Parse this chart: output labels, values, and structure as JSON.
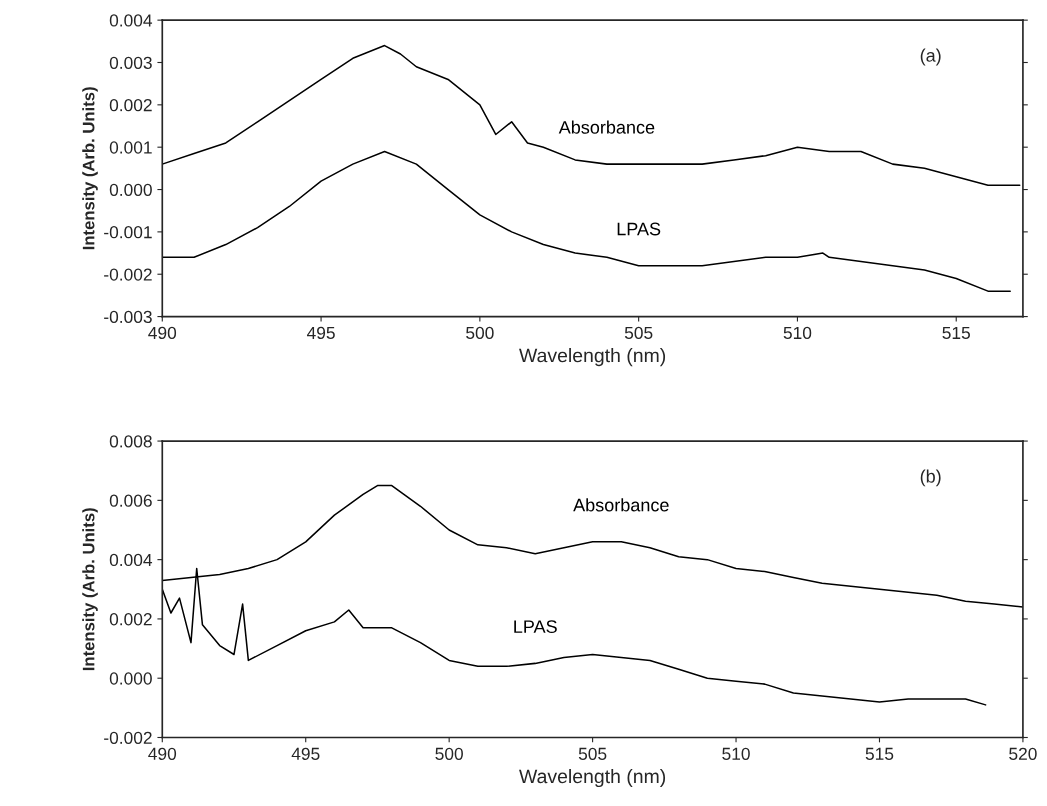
{
  "chart_data": [
    {
      "type": "line",
      "xlabel": "Wavelength (nm)",
      "ylabel": "Intensity (Arb. Units)",
      "annotations": [
        "(a)"
      ],
      "xlim": [
        490,
        517.1
      ],
      "xticks": [
        490,
        495,
        500,
        505,
        510,
        515
      ],
      "ylim": [
        -0.003,
        0.004
      ],
      "yticks": [
        {
          "value": -0.003,
          "label": "-0.003"
        },
        {
          "value": -0.002,
          "label": "-0.002"
        },
        {
          "value": -0.001,
          "label": "-0.001"
        },
        {
          "value": 0,
          "label": "0.000"
        },
        {
          "value": 0.001,
          "label": "0.001"
        },
        {
          "value": 0.002,
          "label": "0.002"
        },
        {
          "value": 0.003,
          "label": "0.003"
        },
        {
          "value": 0.004,
          "label": "0.004"
        }
      ],
      "grid": false,
      "legend": false,
      "series": [
        {
          "name": "Absorbance",
          "color": "#000000",
          "x": [
            490,
            491,
            492,
            493,
            494,
            495,
            496,
            497,
            497.5,
            498,
            499,
            500,
            500.5,
            501,
            501.5,
            502,
            503,
            504,
            505,
            506,
            507,
            508,
            509,
            510,
            511,
            512,
            513,
            514,
            515,
            516,
            517
          ],
          "values": [
            0.0006,
            0.00085,
            0.0011,
            0.0016,
            0.0021,
            0.0026,
            0.0031,
            0.0034,
            0.0032,
            0.0029,
            0.0026,
            0.002,
            0.0013,
            0.0016,
            0.0011,
            0.001,
            0.0007,
            0.0006,
            0.0006,
            0.0006,
            0.0006,
            0.0007,
            0.0008,
            0.001,
            0.0009,
            0.0009,
            0.0006,
            0.0005,
            0.0003,
            0.0001,
            0.0001
          ]
        },
        {
          "name": "LPAS",
          "color": "#000000",
          "x": [
            490,
            491,
            492,
            493,
            494,
            495,
            496,
            497,
            498,
            499,
            500,
            501,
            502,
            503,
            504,
            505,
            506,
            507,
            508,
            509,
            510,
            510.8,
            511,
            512,
            513,
            514,
            515,
            516,
            516.7
          ],
          "values": [
            -0.0016,
            -0.0016,
            -0.0013,
            -0.0009,
            -0.0004,
            0.0002,
            0.0006,
            0.0009,
            0.0006,
            0.0,
            -0.0006,
            -0.001,
            -0.0013,
            -0.0015,
            -0.0016,
            -0.0018,
            -0.0018,
            -0.0018,
            -0.0017,
            -0.0016,
            -0.0016,
            -0.0015,
            -0.0016,
            -0.0017,
            -0.0018,
            -0.0019,
            -0.0021,
            -0.0024,
            -0.0024
          ]
        }
      ]
    },
    {
      "type": "line",
      "xlabel": "Wavelength (nm)",
      "ylabel": "Intensity (Arb. Units)",
      "annotations": [
        "(b)"
      ],
      "xlim": [
        490,
        520
      ],
      "xticks": [
        490,
        495,
        500,
        505,
        510,
        515,
        520
      ],
      "ylim": [
        -0.002,
        0.008
      ],
      "yticks": [
        {
          "value": -0.002,
          "label": "-0.002"
        },
        {
          "value": 0,
          "label": "0.000"
        },
        {
          "value": 0.002,
          "label": "0.002"
        },
        {
          "value": 0.004,
          "label": "0.004"
        },
        {
          "value": 0.006,
          "label": "0.006"
        },
        {
          "value": 0.008,
          "label": "0.008"
        }
      ],
      "grid": false,
      "legend": false,
      "series": [
        {
          "name": "Absorbance",
          "color": "#000000",
          "x": [
            490,
            491,
            492,
            493,
            494,
            495,
            496,
            497,
            497.5,
            498,
            499,
            500,
            501,
            502,
            503,
            504,
            505,
            506,
            507,
            508,
            509,
            510,
            511,
            512,
            513,
            514,
            515,
            516,
            517,
            518,
            519,
            520
          ],
          "values": [
            0.0033,
            0.0034,
            0.0035,
            0.0037,
            0.004,
            0.0046,
            0.0055,
            0.0062,
            0.0065,
            0.0065,
            0.0058,
            0.005,
            0.0045,
            0.0044,
            0.0042,
            0.0044,
            0.0046,
            0.0046,
            0.0044,
            0.0041,
            0.004,
            0.0037,
            0.0036,
            0.0034,
            0.0032,
            0.0031,
            0.003,
            0.0029,
            0.0028,
            0.0026,
            0.0025,
            0.0024
          ]
        },
        {
          "name": "LPAS",
          "color": "#000000",
          "x": [
            490,
            490.3,
            490.6,
            491,
            491.2,
            491.4,
            492,
            492.5,
            492.8,
            493,
            494,
            495,
            496,
            496.5,
            497,
            498,
            499,
            500,
            501,
            502,
            503,
            504,
            505,
            506,
            507,
            508,
            509,
            510,
            511,
            512,
            513,
            514,
            515,
            516,
            517,
            518,
            518.7
          ],
          "values": [
            0.003,
            0.0022,
            0.0027,
            0.0012,
            0.0037,
            0.0018,
            0.0011,
            0.0008,
            0.0025,
            0.0006,
            0.0011,
            0.0016,
            0.0019,
            0.0023,
            0.0017,
            0.0017,
            0.0012,
            0.0006,
            0.0004,
            0.0004,
            0.0005,
            0.0007,
            0.0008,
            0.0007,
            0.0006,
            0.0003,
            0.0,
            -0.0001,
            -0.0002,
            -0.0005,
            -0.0006,
            -0.0007,
            -0.0008,
            -0.0007,
            -0.0007,
            -0.0007,
            -0.0009
          ]
        }
      ]
    }
  ]
}
